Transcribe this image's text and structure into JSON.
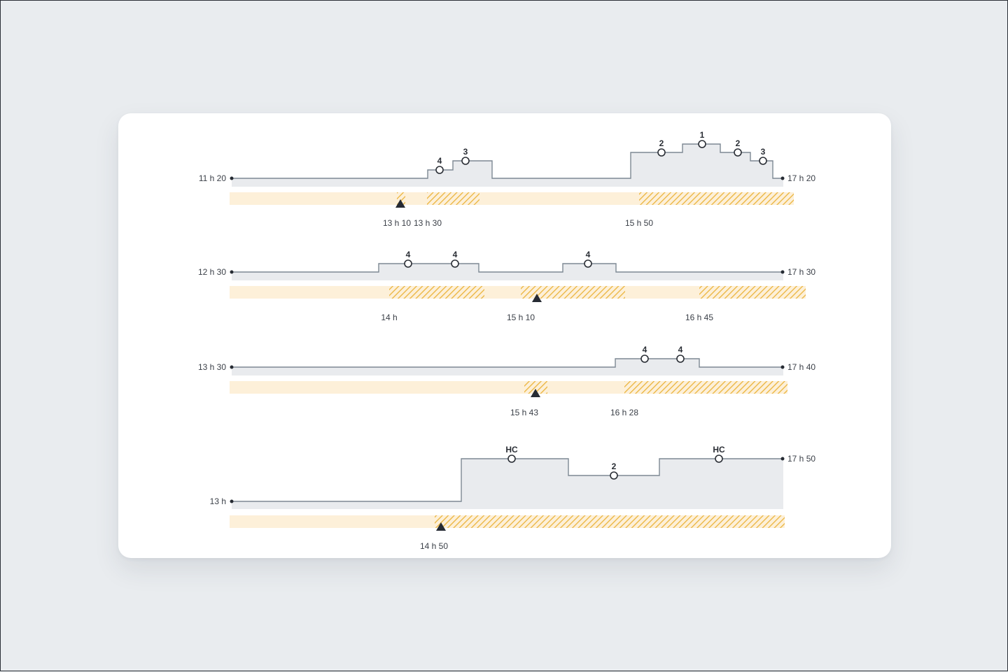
{
  "colors": {
    "background": "#e9ecef",
    "card": "#ffffff",
    "step_fill": "#e9ebee",
    "step_line": "#7d8893",
    "band_base": "#fdf0d9",
    "band_hatch": "#ebb43c",
    "marker": "#262b33"
  },
  "rows": [
    {
      "start_label": "11 h 20",
      "end_label": "17 h 20",
      "levels": [
        "4",
        "3",
        "2",
        "1",
        "2",
        "3"
      ],
      "ticks": [
        "13 h 10",
        "13 h 30",
        "15 h 50"
      ]
    },
    {
      "start_label": "12 h 30",
      "end_label": "17 h 30",
      "levels": [
        "4",
        "4",
        "4"
      ],
      "ticks": [
        "14 h",
        "15 h 10",
        "16 h 45"
      ]
    },
    {
      "start_label": "13 h 30",
      "end_label": "17 h 40",
      "levels": [
        "4",
        "4"
      ],
      "ticks": [
        "15 h 43",
        "16 h 28"
      ]
    },
    {
      "start_label": "13 h",
      "end_label": "17 h 50",
      "levels": [
        "HC",
        "2",
        "HC"
      ],
      "ticks": [
        "14 h 50"
      ]
    }
  ]
}
